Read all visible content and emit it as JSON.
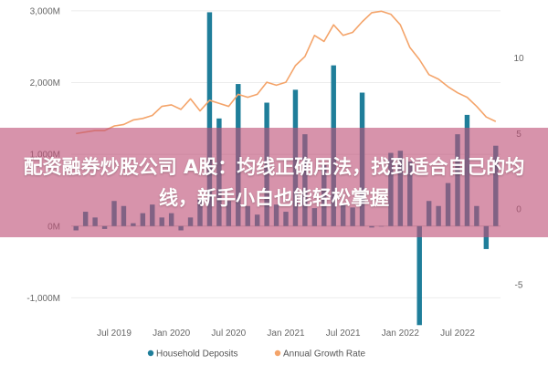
{
  "chart_data": {
    "type": "bar+line",
    "y_left_ticks": [
      "3,000M",
      "2,000M",
      "1,000M",
      "0M",
      "-1,000M"
    ],
    "y_left_tick_values": [
      3000,
      2000,
      1000,
      0,
      -1000
    ],
    "y_left_range": [
      -1300,
      3100
    ],
    "y_right_ticks": [
      "10",
      "5",
      "0",
      "-5"
    ],
    "y_right_tick_values": [
      10,
      5,
      0,
      -5
    ],
    "y_right_range": [
      -7.3,
      13.6
    ],
    "x_ticks": [
      "Jul 2019",
      "Jan 2020",
      "Jul 2020",
      "Jan 2021",
      "Jul 2021",
      "Jan 2022",
      "Jul 2022"
    ],
    "x_tick_indices": [
      4,
      10,
      16,
      22,
      28,
      34,
      40
    ],
    "n_months": 45,
    "legend_position": "bottom",
    "series": [
      {
        "name": "Household Deposits",
        "kind": "bar",
        "color": "#1f7e9a",
        "values": [
          -60,
          200,
          120,
          -40,
          350,
          280,
          40,
          180,
          300,
          120,
          180,
          -60,
          120,
          380,
          2980,
          1500,
          350,
          1980,
          280,
          160,
          1720,
          300,
          200,
          1900,
          1280,
          250,
          850,
          2240,
          320,
          260,
          1860,
          -20,
          0,
          1020,
          1050,
          900,
          -1380,
          350,
          280,
          600,
          1280,
          1550,
          280,
          -320,
          1120
        ]
      },
      {
        "name": "Annual Growth Rate",
        "kind": "line",
        "color": "#f4a46a",
        "values": [
          5.0,
          5.1,
          5.2,
          5.2,
          5.5,
          5.6,
          5.9,
          6.0,
          6.2,
          6.8,
          6.9,
          6.6,
          7.3,
          6.5,
          7.2,
          7.0,
          6.8,
          7.6,
          7.4,
          7.6,
          8.4,
          8.2,
          8.4,
          9.5,
          10.1,
          11.5,
          11.1,
          12.2,
          11.5,
          11.7,
          12.4,
          13.0,
          13.1,
          12.9,
          12.2,
          10.7,
          9.9,
          8.9,
          8.6,
          8.1,
          7.7,
          7.4,
          6.8,
          6.1,
          5.8
        ]
      }
    ]
  },
  "banner": {
    "title": "配资融券炒股公司 A股：均线正确用法，找到适合自己的均线，新手小白也能轻松掌握"
  }
}
